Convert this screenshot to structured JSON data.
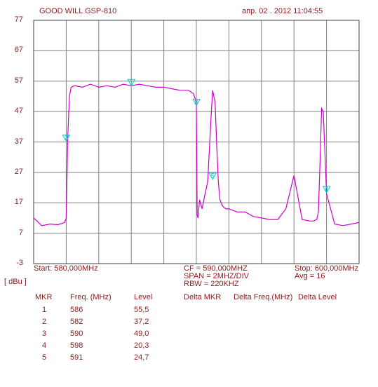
{
  "header": {
    "instrument": "GOOD WILL GSP-810",
    "datetime": "апр. 02 . 2012  11:04:55"
  },
  "footer": {
    "start": "Start:  580,000MHz",
    "cf": "CF = 590,000MHZ",
    "span": "SPAN = 2MHZ/DIV",
    "rbw": "RBW = 220KHZ",
    "stop": "Stop:  600,000MHz",
    "avg": "Avg = 16",
    "unit": "[ dBu ]"
  },
  "table": {
    "headers": [
      "MKR",
      "Freq. (MHz)",
      "Level",
      "Delta MKR",
      "Delta Freq.(MHz)",
      "Delta Level"
    ],
    "rows": [
      [
        "1",
        "586",
        "55,5"
      ],
      [
        "2",
        "582",
        "37,2"
      ],
      [
        "3",
        "590",
        "49,0"
      ],
      [
        "4",
        "598",
        "20,3"
      ],
      [
        "5",
        "591",
        "24,7"
      ]
    ]
  },
  "colors": {
    "trace": "#cc00cc",
    "marker": "#00cccc",
    "grid": "#808080",
    "text": "#8b1a1a"
  },
  "chart_data": {
    "type": "line",
    "xlim": [
      580,
      600
    ],
    "ylim": [
      -3,
      77
    ],
    "ytick_labels": [
      "77",
      "67",
      "57",
      "47",
      "37",
      "27",
      "17",
      "7",
      "-3"
    ],
    "ytick_values": [
      77,
      67,
      57,
      47,
      37,
      27,
      17,
      7,
      -3
    ],
    "grid": true,
    "series": [
      {
        "x": [
          580.0,
          580.5,
          581.0,
          581.5,
          581.9,
          582.0,
          582.1,
          582.2,
          582.3,
          582.5,
          583.0,
          583.5,
          584.0,
          584.5,
          585.0,
          585.5,
          586.0,
          586.5,
          587.0,
          587.5,
          588.0,
          588.5,
          589.0,
          589.5,
          589.8,
          589.95,
          590.0,
          590.05,
          590.1,
          590.2,
          590.35,
          590.5,
          590.7,
          590.9,
          591.0,
          591.15,
          591.25,
          591.3,
          591.35,
          591.45,
          591.6,
          591.8,
          592.0,
          592.5,
          593.0,
          593.5,
          594.0,
          594.5,
          595.0,
          595.5,
          596.0,
          596.5,
          597.0,
          597.2,
          597.4,
          597.5,
          597.6,
          597.7,
          597.8,
          598.0,
          598.5,
          599.0,
          599.5,
          600.0
        ],
        "y": [
          12.0,
          9.5,
          10.0,
          9.8,
          10.5,
          12.0,
          39.0,
          52.0,
          55.0,
          55.5,
          55.0,
          56.0,
          55.0,
          55.5,
          55.0,
          56.0,
          55.5,
          56.0,
          55.5,
          55.0,
          55.0,
          54.5,
          54.0,
          54.0,
          53.0,
          51.0,
          49.0,
          13.0,
          12.0,
          18.0,
          15.0,
          19.0,
          24.0,
          45.0,
          54.0,
          50.0,
          36.0,
          30.0,
          24.0,
          18.0,
          16.0,
          15.0,
          15.0,
          14.0,
          14.0,
          12.5,
          12.0,
          11.5,
          11.5,
          15.0,
          26.0,
          11.5,
          11.0,
          11.0,
          11.5,
          14.0,
          30.0,
          48.0,
          47.0,
          20.0,
          10.0,
          9.5,
          10.0,
          10.5
        ]
      }
    ],
    "markers": [
      {
        "label": "1",
        "x": 586.0,
        "y": 55.5
      },
      {
        "label": "2",
        "x": 582.0,
        "y": 37.2
      },
      {
        "label": "3",
        "x": 590.0,
        "y": 49.0
      },
      {
        "label": "4",
        "x": 598.0,
        "y": 20.3
      },
      {
        "label": "5",
        "x": 591.0,
        "y": 24.7
      }
    ]
  }
}
